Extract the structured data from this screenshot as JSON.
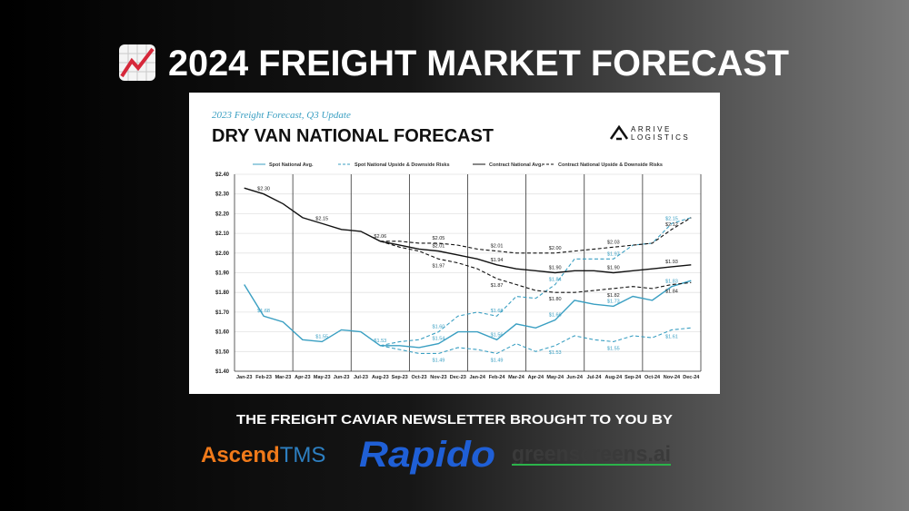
{
  "header": {
    "title": "2024 FREIGHT MARKET FORECAST"
  },
  "logo": {
    "name": "ARRIVE",
    "tagline": "LOGISTICS"
  },
  "sponsors": {
    "heading": "THE FREIGHT CAVIAR NEWSLETTER BROUGHT TO YOU BY",
    "ascend": [
      "Ascend",
      "TMS"
    ],
    "rapido": "Rapido",
    "greenscreens": "greenscreens.ai"
  },
  "chart_data": {
    "type": "line",
    "subtitle": "2023 Freight Forecast, Q3 Update",
    "title": "DRY VAN NATIONAL FORECAST",
    "categories": [
      "Jan-23",
      "Feb-23",
      "Mar-23",
      "Apr-23",
      "May-23",
      "Jun-23",
      "Jul-23",
      "Aug-23",
      "Sep-23",
      "Oct-23",
      "Nov-23",
      "Dec-23",
      "Jan-24",
      "Feb-24",
      "Mar-24",
      "Apr-24",
      "May-24",
      "Jun-24",
      "Jul-24",
      "Aug-24",
      "Sep-24",
      "Oct-24",
      "Nov-24",
      "Dec-24"
    ],
    "ylim": [
      1.4,
      2.4
    ],
    "yticks": [
      {
        "value": 1.4,
        "label": "$1.40"
      },
      {
        "value": 1.5,
        "label": "$1.50"
      },
      {
        "value": 1.6,
        "label": "$1.60"
      },
      {
        "value": 1.7,
        "label": "$1.70"
      },
      {
        "value": 1.8,
        "label": "$1.80"
      },
      {
        "value": 1.9,
        "label": "$1.90"
      },
      {
        "value": 2.0,
        "label": "$2.00"
      },
      {
        "value": 2.1,
        "label": "$2.10"
      },
      {
        "value": 2.2,
        "label": "$2.20"
      },
      {
        "value": 2.3,
        "label": "$2.30"
      },
      {
        "value": 2.4,
        "label": "$2.40"
      }
    ],
    "grid": true,
    "series": [
      {
        "name": "Spot National Avg.",
        "color": "#3a9fc2",
        "dashed": false,
        "values": [
          1.84,
          1.68,
          1.65,
          1.56,
          1.55,
          1.61,
          1.6,
          1.53,
          1.53,
          1.52,
          1.54,
          1.6,
          1.6,
          1.56,
          1.64,
          1.62,
          1.66,
          1.76,
          1.74,
          1.73,
          1.78,
          1.76,
          1.83,
          1.86
        ],
        "value_labels": [
          null,
          "$1.68",
          null,
          null,
          "$1.55",
          null,
          null,
          "$1.53",
          null,
          null,
          "$1.54",
          null,
          null,
          "$1.56",
          null,
          null,
          "$1.66",
          null,
          null,
          "$1.73",
          null,
          null,
          "$1.83",
          null
        ]
      },
      {
        "name": "Spot National Upside & Downside Risks",
        "color": "#3a9fc2",
        "dashed": true,
        "values": [
          null,
          null,
          null,
          null,
          null,
          null,
          null,
          1.53,
          1.55,
          1.56,
          1.6,
          1.68,
          1.7,
          1.68,
          1.78,
          1.77,
          1.84,
          1.97,
          1.97,
          1.97,
          2.04,
          2.05,
          2.15,
          2.18
        ],
        "value_labels": [
          null,
          null,
          null,
          null,
          null,
          null,
          null,
          null,
          null,
          null,
          "$1.60",
          null,
          null,
          "$1.68",
          null,
          null,
          "$1.84",
          null,
          null,
          "$1.97",
          null,
          null,
          "$2.15",
          null
        ],
        "lower_values": [
          null,
          null,
          null,
          null,
          null,
          null,
          null,
          1.53,
          1.51,
          1.49,
          1.49,
          1.52,
          1.51,
          1.49,
          1.54,
          1.5,
          1.53,
          1.58,
          1.56,
          1.55,
          1.58,
          1.57,
          1.61,
          1.62
        ],
        "lower_value_labels": [
          null,
          null,
          null,
          null,
          null,
          null,
          null,
          null,
          null,
          null,
          "$1.49",
          null,
          null,
          "$1.49",
          null,
          null,
          "$1.53",
          null,
          null,
          "$1.55",
          null,
          null,
          "$1.61",
          null
        ]
      },
      {
        "name": "Contract National Avg.",
        "color": "#111111",
        "dashed": false,
        "values": [
          2.33,
          2.3,
          2.25,
          2.18,
          2.15,
          2.12,
          2.11,
          2.06,
          2.04,
          2.02,
          2.01,
          1.99,
          1.97,
          1.94,
          1.92,
          1.91,
          1.9,
          1.91,
          1.91,
          1.9,
          1.91,
          1.92,
          1.93,
          1.94
        ],
        "value_labels": [
          null,
          "$2.30",
          null,
          null,
          "$2.15",
          null,
          null,
          "$2.06",
          null,
          null,
          "$2.01",
          null,
          null,
          "$1.94",
          null,
          null,
          "$1.90",
          null,
          null,
          "$1.90",
          null,
          null,
          "$1.93",
          null
        ]
      },
      {
        "name": "Contract National Upside & Downside Risks",
        "color": "#111111",
        "dashed": true,
        "values": [
          null,
          null,
          null,
          null,
          null,
          null,
          null,
          2.06,
          2.06,
          2.05,
          2.05,
          2.04,
          2.02,
          2.01,
          2.0,
          2.0,
          2.0,
          2.01,
          2.02,
          2.03,
          2.04,
          2.05,
          2.12,
          2.18
        ],
        "value_labels": [
          null,
          null,
          null,
          null,
          null,
          null,
          null,
          null,
          null,
          null,
          "$2.05",
          null,
          null,
          "$2.01",
          null,
          null,
          "$2.00",
          null,
          null,
          "$2.03",
          null,
          null,
          "$2.12",
          null
        ],
        "lower_values": [
          null,
          null,
          null,
          null,
          null,
          null,
          null,
          2.06,
          2.03,
          2.01,
          1.97,
          1.95,
          1.92,
          1.87,
          1.84,
          1.81,
          1.8,
          1.8,
          1.81,
          1.82,
          1.83,
          1.82,
          1.84,
          1.85
        ],
        "lower_value_labels": [
          null,
          null,
          null,
          null,
          null,
          null,
          null,
          null,
          null,
          null,
          "$1.97",
          null,
          null,
          "$1.87",
          null,
          null,
          "$1.80",
          null,
          null,
          "$1.82",
          null,
          null,
          "$1.84",
          null
        ]
      }
    ]
  }
}
